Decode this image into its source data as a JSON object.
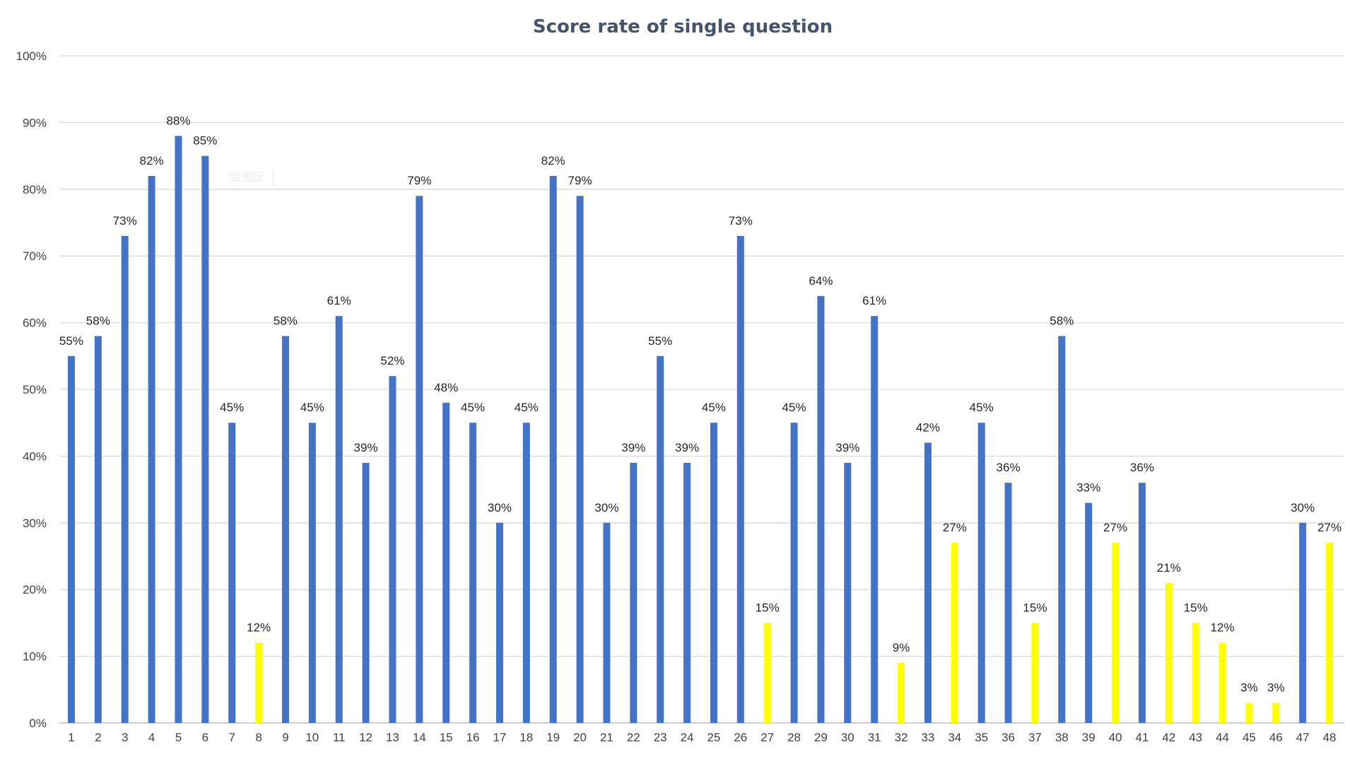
{
  "chart_data": {
    "type": "bar",
    "title": "Score rate of single question",
    "xlabel": "",
    "ylabel": "",
    "ylim": [
      0,
      100
    ],
    "y_ticks": [
      "0%",
      "10%",
      "20%",
      "30%",
      "40%",
      "50%",
      "60%",
      "70%",
      "80%",
      "90%",
      "100%"
    ],
    "grid": true,
    "legend": "none",
    "categories": [
      "1",
      "2",
      "3",
      "4",
      "5",
      "6",
      "7",
      "8",
      "9",
      "10",
      "11",
      "12",
      "13",
      "14",
      "15",
      "16",
      "17",
      "18",
      "19",
      "20",
      "21",
      "22",
      "23",
      "24",
      "25",
      "26",
      "27",
      "28",
      "29",
      "30",
      "31",
      "32",
      "33",
      "34",
      "35",
      "36",
      "37",
      "38",
      "39",
      "40",
      "41",
      "42",
      "43",
      "44",
      "45",
      "46",
      "47",
      "48"
    ],
    "values": [
      55,
      58,
      73,
      82,
      88,
      85,
      45,
      12,
      58,
      45,
      61,
      39,
      52,
      79,
      48,
      45,
      30,
      45,
      82,
      79,
      30,
      39,
      55,
      39,
      45,
      73,
      15,
      45,
      64,
      39,
      61,
      9,
      42,
      27,
      45,
      36,
      15,
      58,
      33,
      27,
      36,
      21,
      15,
      12,
      3,
      3,
      30,
      27
    ],
    "labels": [
      "55%",
      "58%",
      "73%",
      "82%",
      "88%",
      "85%",
      "45%",
      "12%",
      "58%",
      "45%",
      "61%",
      "39%",
      "52%",
      "79%",
      "48%",
      "45%",
      "30%",
      "45%",
      "82%",
      "79%",
      "30%",
      "39%",
      "55%",
      "39%",
      "45%",
      "73%",
      "15%",
      "45%",
      "64%",
      "39%",
      "61%",
      "9%",
      "42%",
      "27%",
      "45%",
      "36%",
      "15%",
      "58%",
      "33%",
      "27%",
      "36%",
      "21%",
      "15%",
      "12%",
      "3%",
      "3%",
      "30%",
      "27%"
    ],
    "bar_colors": [
      "blue",
      "blue",
      "blue",
      "blue",
      "blue",
      "blue",
      "blue",
      "yellow",
      "blue",
      "blue",
      "blue",
      "blue",
      "blue",
      "blue",
      "blue",
      "blue",
      "blue",
      "blue",
      "blue",
      "blue",
      "blue",
      "blue",
      "blue",
      "blue",
      "blue",
      "blue",
      "yellow",
      "blue",
      "blue",
      "blue",
      "blue",
      "yellow",
      "blue",
      "yellow",
      "blue",
      "blue",
      "yellow",
      "blue",
      "blue",
      "yellow",
      "blue",
      "yellow",
      "yellow",
      "yellow",
      "yellow",
      "yellow",
      "blue",
      "yellow"
    ]
  },
  "colors": {
    "blue": "#4472c4",
    "yellow": "#ffff00"
  },
  "plot_area_label": "绘图区"
}
